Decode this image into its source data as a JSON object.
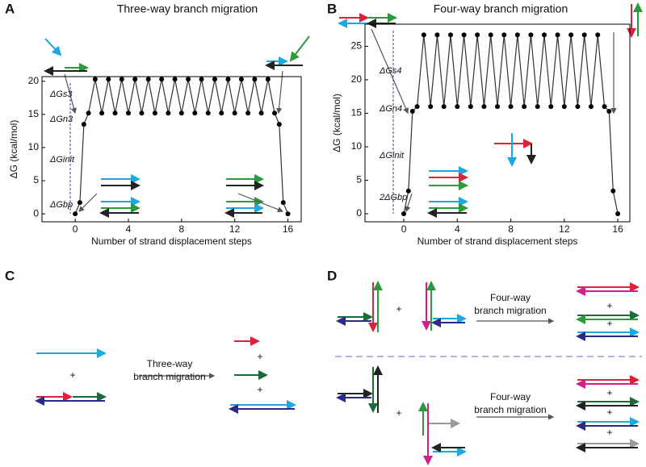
{
  "chart_data": [
    {
      "type": "line",
      "title": "Three-way branch migration",
      "x_label": "Number of strand displacement steps",
      "y_label": "ΔG (kcal/mol)",
      "x": [
        0,
        0.35,
        0.65,
        1,
        1.5,
        2,
        2.5,
        3,
        3.5,
        4,
        4.5,
        5,
        5.5,
        6,
        6.5,
        7,
        7.5,
        8,
        8.5,
        9,
        9.5,
        10,
        10.5,
        11,
        11.5,
        12,
        12.5,
        13,
        13.5,
        14,
        14.5,
        15,
        15.35,
        15.65,
        16
      ],
      "values": [
        0,
        1.7,
        13.5,
        15.2,
        20.3,
        15.2,
        20.3,
        15.2,
        20.3,
        15.2,
        20.3,
        15.2,
        20.3,
        15.2,
        20.3,
        15.2,
        20.3,
        15.2,
        20.3,
        15.2,
        20.3,
        15.2,
        20.3,
        15.2,
        20.3,
        15.2,
        20.3,
        15.2,
        20.3,
        15.2,
        20.3,
        15.2,
        13.5,
        1.7,
        0
      ],
      "color": "#333333",
      "xlim": [
        -2.5,
        17
      ],
      "xticks": [
        0,
        4,
        8,
        12,
        16
      ],
      "ylim": [
        -1.2,
        20.7
      ],
      "yticks": [
        0,
        5,
        10,
        15,
        20
      ],
      "annotations": [
        "ΔGs3",
        "ΔGn3",
        "ΔGinit",
        "ΔGbp"
      ]
    },
    {
      "type": "line",
      "title": "Four-way branch migration",
      "x_label": "Number of strand displacement steps",
      "y_label": "ΔG (kcal/mol)",
      "x": [
        0,
        0.35,
        0.65,
        1,
        1.5,
        2,
        2.5,
        3,
        3.5,
        4,
        4.5,
        5,
        5.5,
        6,
        6.5,
        7,
        7.5,
        8,
        8.5,
        9,
        9.5,
        10,
        10.5,
        11,
        11.5,
        12,
        12.5,
        13,
        13.5,
        14,
        14.5,
        15,
        15.35,
        15.65,
        16
      ],
      "values": [
        0,
        3.4,
        15.3,
        16,
        26.7,
        16,
        26.7,
        16,
        26.7,
        16,
        26.7,
        16,
        26.7,
        16,
        26.7,
        16,
        26.7,
        16,
        26.7,
        16,
        26.7,
        16,
        26.7,
        16,
        26.7,
        16,
        26.7,
        16,
        26.7,
        16,
        26.7,
        16,
        15.3,
        3.4,
        0
      ],
      "color": "#333333",
      "xlim": [
        -2.9,
        16.9
      ],
      "xticks": [
        0,
        4,
        8,
        12,
        16
      ],
      "ylim": [
        -1.2,
        28.3
      ],
      "yticks": [
        0,
        5,
        10,
        15,
        20,
        25
      ],
      "annotations": [
        "ΔGs4",
        "ΔGn4",
        "ΔGinit",
        "2ΔGbp"
      ]
    }
  ],
  "panels": {
    "labels": [
      "A",
      "B",
      "C",
      "D"
    ],
    "c": {
      "process": "Three-way",
      "process2": "branch migration",
      "plus": "+"
    },
    "d": {
      "process": "Four-way",
      "process2": "branch migration",
      "plus": "+"
    }
  }
}
